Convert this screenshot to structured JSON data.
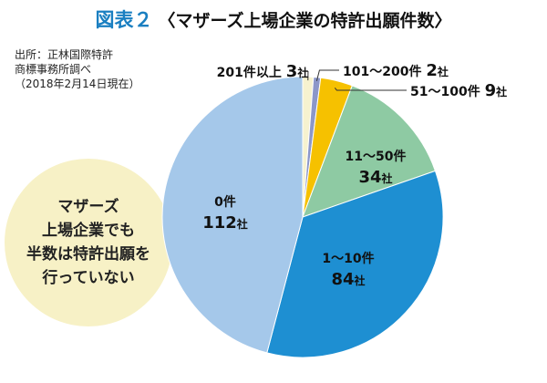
{
  "header": {
    "prefix": "図表２",
    "title": "〈マザーズ上場企業の特許出願件数〉"
  },
  "source": {
    "line1": "出所：正林国際特許",
    "line2": "商標事務所調べ",
    "line3": "（2018年2月14日現在）"
  },
  "callout": {
    "lines": [
      "マザーズ",
      "上場企業でも",
      "半数は特許出願を",
      "行っていない"
    ]
  },
  "colors": {
    "title_accent": "#1a7fc1",
    "callout_bg": "#f7f1c6"
  },
  "chart_data": {
    "type": "pie",
    "title": "〈マザーズ上場企業の特許出願件数〉",
    "unit": "社",
    "slices": [
      {
        "label": "201件以上",
        "value": 3,
        "display": "3",
        "color": "#f6f2cf"
      },
      {
        "label": "101〜200件",
        "value": 2,
        "display": "2",
        "color": "#8c97c9"
      },
      {
        "label": "51〜100件",
        "value": 9,
        "display": "9",
        "color": "#f6c100"
      },
      {
        "label": "11〜50件",
        "value": 34,
        "display": "34",
        "color": "#8ecaa3"
      },
      {
        "label": "1〜10件",
        "value": 84,
        "display": "84",
        "color": "#1e8fd2"
      },
      {
        "label": "0件",
        "value": 112,
        "display": "112",
        "color": "#a5c8ea"
      }
    ]
  }
}
